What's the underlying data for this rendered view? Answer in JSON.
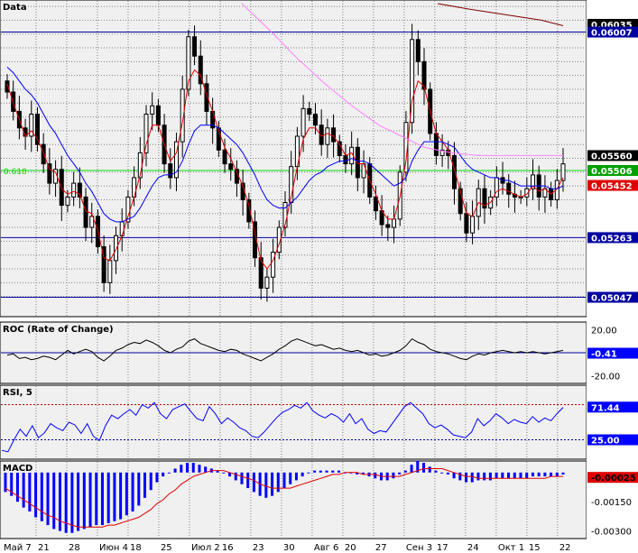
{
  "colors": {
    "background": "#f0f0f0",
    "grid": "#808080",
    "candle": "#000000",
    "level_line": "#0000a0",
    "fib_line": "#00e000",
    "ema_fast": "#e00000",
    "ema_slow": "#0000ff",
    "ma_long": "#ff80ff",
    "ma_vlong": "#800000",
    "roc_line": "#000000",
    "rsi_line": "#0000ff",
    "macd_hist": "#0000ff",
    "macd_signal": "#e00000"
  },
  "chart_data": [
    {
      "type": "candlestick",
      "title": "Data",
      "ylim": [
        0.0499,
        0.0611
      ],
      "x_labels": [
        "Май 7",
        "21",
        "28",
        "Июн 4",
        "18",
        "25",
        "Июл 2",
        "16",
        "23",
        "30",
        "Авг 6",
        "20",
        "27",
        "Сен 3",
        "17",
        "24",
        "Окт 1",
        "15",
        "22"
      ],
      "levels": [
        0.06007,
        0.05263,
        0.05047
      ],
      "fib_level": {
        "value": 0.05506,
        "label": "0.618"
      },
      "price_tags": [
        {
          "value": "0.06035",
          "bg": "#000000",
          "fg": "#ffffff"
        },
        {
          "value": "0.06007",
          "bg": "#0000a0",
          "fg": "#ffffff"
        },
        {
          "value": "0.05560",
          "bg": "#000000",
          "fg": "#ffffff"
        },
        {
          "value": "0.05506",
          "bg": "#00a000",
          "fg": "#ffffff"
        },
        {
          "value": "0.05452",
          "bg": "#e00000",
          "fg": "#ffffff"
        },
        {
          "value": "0.05263",
          "bg": "#0000a0",
          "fg": "#ffffff"
        },
        {
          "value": "0.05047",
          "bg": "#0000a0",
          "fg": "#ffffff"
        }
      ],
      "closes": [
        0.0579,
        0.0572,
        0.0566,
        0.0563,
        0.0571,
        0.056,
        0.0553,
        0.0546,
        0.0551,
        0.0538,
        0.0541,
        0.0546,
        0.0541,
        0.053,
        0.0534,
        0.0523,
        0.051,
        0.0518,
        0.0527,
        0.0532,
        0.0541,
        0.0548,
        0.0557,
        0.0571,
        0.0574,
        0.0567,
        0.0553,
        0.0548,
        0.0561,
        0.058,
        0.0599,
        0.0592,
        0.0582,
        0.0572,
        0.0566,
        0.0558,
        0.0553,
        0.0551,
        0.0546,
        0.054,
        0.0532,
        0.0519,
        0.0508,
        0.0512,
        0.0521,
        0.053,
        0.0539,
        0.0552,
        0.0563,
        0.0573,
        0.0571,
        0.0567,
        0.056,
        0.0566,
        0.0561,
        0.0556,
        0.0553,
        0.0559,
        0.0548,
        0.0553,
        0.0541,
        0.0536,
        0.0531,
        0.053,
        0.0533,
        0.055,
        0.0568,
        0.0598,
        0.059,
        0.058,
        0.0564,
        0.0556,
        0.0558,
        0.0556,
        0.0544,
        0.0535,
        0.0528,
        0.0534,
        0.0544,
        0.0537,
        0.0541,
        0.0548,
        0.0546,
        0.0542,
        0.0541,
        0.0541,
        0.0544,
        0.0549,
        0.0541,
        0.0544,
        0.054,
        0.0547,
        0.0553
      ],
      "series": [
        {
          "name": "EMA fast",
          "values": [
            0.0582,
            0.0575,
            0.0569,
            0.0563,
            0.0565,
            0.0562,
            0.0557,
            0.0551,
            0.055,
            0.0544,
            0.0542,
            0.0543,
            0.0542,
            0.0536,
            0.0535,
            0.0529,
            0.0519,
            0.0518,
            0.0522,
            0.0527,
            0.0534,
            0.0541,
            0.0549,
            0.056,
            0.0567,
            0.0567,
            0.056,
            0.0554,
            0.0557,
            0.0568,
            0.0583,
            0.0587,
            0.0585,
            0.0578,
            0.0572,
            0.0565,
            0.0559,
            0.0555,
            0.055,
            0.0545,
            0.0538,
            0.0528,
            0.0518,
            0.0515,
            0.0518,
            0.0524,
            0.0531,
            0.0541,
            0.0552,
            0.0562,
            0.0566,
            0.0566,
            0.0563,
            0.0564,
            0.0563,
            0.056,
            0.0556,
            0.0557,
            0.0553,
            0.0553,
            0.0547,
            0.0542,
            0.0536,
            0.0533,
            0.0533,
            0.0541,
            0.0554,
            0.0576,
            0.0583,
            0.0581,
            0.0572,
            0.0564,
            0.0561,
            0.0558,
            0.0551,
            0.0543,
            0.0535,
            0.0534,
            0.0539,
            0.0538,
            0.0539,
            0.0543,
            0.0544,
            0.0543,
            0.0542,
            0.0541,
            0.0542,
            0.0545,
            0.0543,
            0.0544,
            0.0542,
            0.0544,
            0.0548
          ]
        },
        {
          "name": "EMA slow",
          "values": [
            0.0588,
            0.0586,
            0.0583,
            0.058,
            0.0578,
            0.0575,
            0.0571,
            0.0567,
            0.0564,
            0.056,
            0.0556,
            0.0553,
            0.055,
            0.0546,
            0.0543,
            0.0539,
            0.0535,
            0.0533,
            0.0532,
            0.0532,
            0.0533,
            0.0534,
            0.0537,
            0.0541,
            0.0545,
            0.0548,
            0.0549,
            0.0549,
            0.055,
            0.0554,
            0.056,
            0.0565,
            0.0567,
            0.0567,
            0.0567,
            0.0566,
            0.0564,
            0.0562,
            0.056,
            0.0557,
            0.0553,
            0.0549,
            0.0544,
            0.054,
            0.0538,
            0.0537,
            0.0537,
            0.0539,
            0.0541,
            0.0544,
            0.0547,
            0.0549,
            0.055,
            0.0552,
            0.0553,
            0.0554,
            0.0554,
            0.0555,
            0.0554,
            0.0554,
            0.0553,
            0.0551,
            0.0549,
            0.0547,
            0.0545,
            0.0546,
            0.0548,
            0.0554,
            0.0558,
            0.0561,
            0.0561,
            0.0561,
            0.0561,
            0.056,
            0.0559,
            0.0556,
            0.0553,
            0.0551,
            0.055,
            0.0549,
            0.0548,
            0.0548,
            0.0547,
            0.0547,
            0.0546,
            0.0545,
            0.0545,
            0.0545,
            0.0545,
            0.0545,
            0.0544,
            0.0544,
            0.0545
          ]
        }
      ],
      "ma_long_line": [
        [
          268,
          0.0611
        ],
        [
          300,
          0.0601
        ],
        [
          330,
          0.0591
        ],
        [
          360,
          0.0582
        ],
        [
          390,
          0.0574
        ],
        [
          420,
          0.0567
        ],
        [
          445,
          0.0563
        ],
        [
          470,
          0.0559
        ],
        [
          500,
          0.0557
        ],
        [
          530,
          0.0556
        ],
        [
          560,
          0.0556
        ],
        [
          590,
          0.0556
        ],
        [
          624,
          0.0556
        ]
      ],
      "ma_vlong_line": [
        [
          485,
          0.0611
        ],
        [
          520,
          0.0609
        ],
        [
          560,
          0.0607
        ],
        [
          600,
          0.0605
        ],
        [
          624,
          0.0603
        ]
      ]
    },
    {
      "type": "line",
      "title": "ROC (Rate of Change)",
      "ylim": [
        -25,
        25
      ],
      "y_ticks": [
        "20.00",
        "-20.00"
      ],
      "current_tag": "-0.41",
      "zero_line": 0,
      "values": [
        -2,
        -1,
        -5,
        -4,
        -6,
        -5,
        -3,
        -4,
        -6,
        -2,
        2,
        -1,
        1,
        3,
        1,
        -4,
        -7,
        -3,
        2,
        4,
        7,
        9,
        8,
        11,
        9,
        6,
        2,
        0,
        3,
        5,
        10,
        12,
        8,
        6,
        4,
        2,
        1,
        3,
        2,
        -1,
        -3,
        -5,
        -7,
        -4,
        -1,
        3,
        6,
        10,
        12,
        10,
        8,
        6,
        7,
        5,
        3,
        4,
        2,
        1,
        2,
        0,
        -2,
        -1,
        -3,
        -2,
        0,
        2,
        6,
        12,
        9,
        7,
        3,
        1,
        0,
        -1,
        -3,
        -5,
        -6,
        -3,
        -1,
        -2,
        0,
        1,
        2,
        1,
        0,
        1,
        0,
        1,
        0,
        -1,
        0,
        1,
        2
      ]
    },
    {
      "type": "line",
      "title": "RSI, 5",
      "ylim": [
        0,
        100
      ],
      "levels": [
        75,
        25
      ],
      "current_tag": "71.44",
      "level_tag": "25.00",
      "values": [
        10,
        8,
        25,
        40,
        30,
        45,
        28,
        35,
        48,
        42,
        38,
        50,
        46,
        34,
        48,
        30,
        24,
        45,
        60,
        55,
        62,
        68,
        60,
        75,
        70,
        78,
        62,
        55,
        68,
        72,
        76,
        65,
        55,
        52,
        72,
        62,
        48,
        56,
        50,
        42,
        38,
        30,
        28,
        36,
        46,
        56,
        64,
        68,
        74,
        70,
        78,
        66,
        60,
        56,
        62,
        58,
        50,
        62,
        48,
        55,
        40,
        34,
        38,
        36,
        48,
        60,
        72,
        78,
        70,
        62,
        48,
        42,
        46,
        40,
        32,
        30,
        28,
        36,
        55,
        45,
        52,
        62,
        56,
        48,
        54,
        50,
        48,
        58,
        50,
        56,
        52,
        62,
        71
      ]
    },
    {
      "type": "bar",
      "title": "MACD",
      "ylim": [
        -0.0033,
        0.0005
      ],
      "y_ticks": [
        "-0.00150",
        "-0.00300"
      ],
      "current_tag": "-0.00025",
      "values": [
        -0.001,
        -0.0012,
        -0.0015,
        -0.0018,
        -0.002,
        -0.0023,
        -0.0025,
        -0.0027,
        -0.0029,
        -0.003,
        -0.0031,
        -0.0031,
        -0.003,
        -0.0029,
        -0.0028,
        -0.0027,
        -0.0027,
        -0.0026,
        -0.0025,
        -0.0024,
        -0.0022,
        -0.002,
        -0.0017,
        -0.0013,
        -0.0009,
        -0.0005,
        -0.0002,
        0.0,
        0.0002,
        0.0004,
        0.0005,
        0.0005,
        0.0004,
        0.0003,
        0.0002,
        0.0001,
        0.0,
        -0.0002,
        -0.0004,
        -0.0006,
        -0.0008,
        -0.001,
        -0.0012,
        -0.0013,
        -0.0012,
        -0.001,
        -0.0008,
        -0.0006,
        -0.0004,
        -0.0002,
        0.0,
        0.0001,
        0.0001,
        0.0001,
        0.0001,
        0.0001,
        0.0,
        0.0,
        -0.0001,
        -0.0001,
        -0.0002,
        -0.0003,
        -0.0004,
        -0.0004,
        -0.0003,
        -0.0001,
        0.0001,
        0.0004,
        0.0006,
        0.0005,
        0.0003,
        0.0001,
        0.0,
        -0.0001,
        -0.0003,
        -0.0004,
        -0.0005,
        -0.0005,
        -0.0004,
        -0.0004,
        -0.0004,
        -0.0003,
        -0.0003,
        -0.0003,
        -0.0003,
        -0.0003,
        -0.0003,
        -0.0002,
        -0.0002,
        -0.0002,
        -0.0002,
        -0.0002,
        -0.0001
      ],
      "signal": [
        -0.0008,
        -0.001,
        -0.0012,
        -0.0014,
        -0.0016,
        -0.0018,
        -0.002,
        -0.0022,
        -0.0023,
        -0.0025,
        -0.0026,
        -0.0027,
        -0.0028,
        -0.0028,
        -0.0028,
        -0.0028,
        -0.0028,
        -0.0027,
        -0.0027,
        -0.0026,
        -0.0025,
        -0.0024,
        -0.0023,
        -0.0021,
        -0.0019,
        -0.0016,
        -0.0014,
        -0.0011,
        -0.0009,
        -0.0006,
        -0.0004,
        -0.0002,
        -0.0001,
        0.0,
        0.0001,
        0.0001,
        0.0001,
        0.0,
        -0.0001,
        -0.0002,
        -0.0003,
        -0.0004,
        -0.0006,
        -0.0007,
        -0.0008,
        -0.0008,
        -0.0008,
        -0.0008,
        -0.0007,
        -0.0006,
        -0.0005,
        -0.0004,
        -0.0003,
        -0.0002,
        -0.0001,
        -0.0001,
        0.0,
        0.0,
        0.0,
        -0.0001,
        -0.0001,
        -0.0001,
        -0.0002,
        -0.0002,
        -0.0002,
        -0.0002,
        -0.0001,
        0.0,
        0.0001,
        0.0002,
        0.0002,
        0.0002,
        0.0002,
        0.0001,
        0.0,
        -0.0001,
        -0.0002,
        -0.0002,
        -0.0003,
        -0.0003,
        -0.0003,
        -0.0003,
        -0.0003,
        -0.0003,
        -0.0003,
        -0.0003,
        -0.0003,
        -0.0003,
        -0.0003,
        -0.0003,
        -0.0002,
        -0.0002,
        -0.0002
      ]
    }
  ]
}
